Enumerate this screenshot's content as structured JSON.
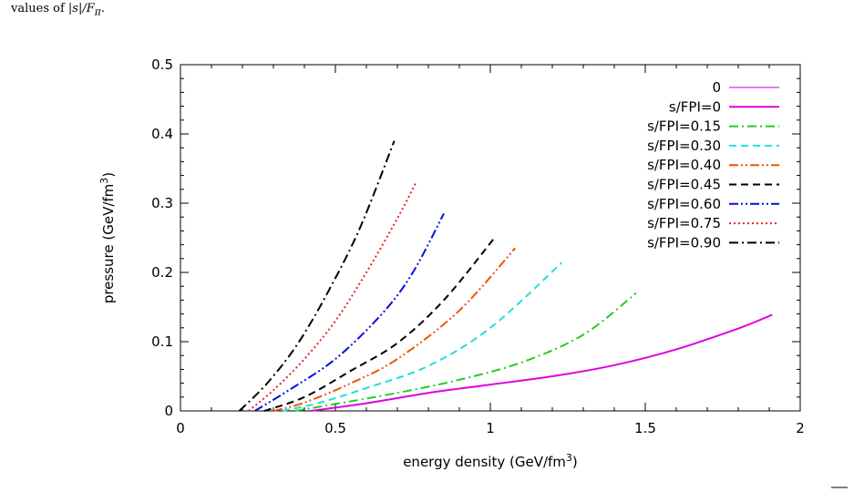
{
  "caption": {
    "prefix": "values of ",
    "math": "|s|/F",
    "sub": "π",
    "suffix": "."
  },
  "chart_data": {
    "type": "line",
    "xlabel": "energy density (GeV/fm",
    "xlabel_sup": "3",
    "xlabel_end": ")",
    "ylabel": "pressure (GeV/fm",
    "ylabel_sup": "3",
    "ylabel_end": ")",
    "xlim": [
      0,
      2
    ],
    "ylim": [
      0,
      0.5
    ],
    "x_ticks": [
      0,
      0.5,
      1,
      1.5,
      2
    ],
    "x_tick_labels": [
      "0",
      "0.5",
      "1",
      "1.5",
      "2"
    ],
    "y_ticks": [
      0,
      0.1,
      0.2,
      0.3,
      0.4,
      0.5
    ],
    "y_tick_labels": [
      "0",
      "0.1",
      "0.2",
      "0.3",
      "0.4",
      "0.5"
    ],
    "grid": false,
    "legend_position": "top-right",
    "series": [
      {
        "name": "0",
        "color": "#cc33dd",
        "dash": "solid",
        "width": 1.2,
        "points": []
      },
      {
        "name": "s/FPI=0",
        "color": "#e000e0",
        "dash": "solid",
        "width": 2,
        "points": [
          [
            0.42,
            0
          ],
          [
            0.6,
            0.011
          ],
          [
            0.8,
            0.026
          ],
          [
            1.0,
            0.038
          ],
          [
            1.2,
            0.05
          ],
          [
            1.4,
            0.066
          ],
          [
            1.6,
            0.089
          ],
          [
            1.8,
            0.119
          ],
          [
            1.91,
            0.139
          ]
        ]
      },
      {
        "name": "s/FPI=0.15",
        "color": "#22cc22",
        "dash": "dashdot",
        "width": 2,
        "points": [
          [
            0.37,
            0
          ],
          [
            0.5,
            0.01
          ],
          [
            0.7,
            0.026
          ],
          [
            0.9,
            0.045
          ],
          [
            1.1,
            0.07
          ],
          [
            1.3,
            0.11
          ],
          [
            1.47,
            0.17
          ]
        ]
      },
      {
        "name": "s/FPI=0.30",
        "color": "#22dddd",
        "dash": "dashed",
        "width": 2,
        "points": [
          [
            0.33,
            0
          ],
          [
            0.45,
            0.012
          ],
          [
            0.6,
            0.033
          ],
          [
            0.8,
            0.065
          ],
          [
            1.0,
            0.12
          ],
          [
            1.23,
            0.214
          ]
        ]
      },
      {
        "name": "s/FPI=0.40",
        "color": "#ee5500",
        "dash": "dashdotdot",
        "width": 2,
        "points": [
          [
            0.3,
            0
          ],
          [
            0.4,
            0.012
          ],
          [
            0.55,
            0.04
          ],
          [
            0.7,
            0.075
          ],
          [
            0.9,
            0.145
          ],
          [
            1.08,
            0.235
          ]
        ]
      },
      {
        "name": "s/FPI=0.45",
        "color": "#000000",
        "dash": "dashed",
        "width": 2,
        "points": [
          [
            0.27,
            0
          ],
          [
            0.4,
            0.02
          ],
          [
            0.55,
            0.058
          ],
          [
            0.7,
            0.098
          ],
          [
            0.85,
            0.16
          ],
          [
            1.01,
            0.248
          ]
        ]
      },
      {
        "name": "s/FPI=0.60",
        "color": "#0011dd",
        "dash": "dashdotdot",
        "width": 2,
        "points": [
          [
            0.24,
            0
          ],
          [
            0.35,
            0.03
          ],
          [
            0.5,
            0.075
          ],
          [
            0.65,
            0.14
          ],
          [
            0.75,
            0.2
          ],
          [
            0.85,
            0.285
          ]
        ]
      },
      {
        "name": "s/FPI=0.75",
        "color": "#ee2222",
        "dash": "dotted",
        "width": 2,
        "points": [
          [
            0.22,
            0
          ],
          [
            0.3,
            0.03
          ],
          [
            0.4,
            0.075
          ],
          [
            0.5,
            0.13
          ],
          [
            0.6,
            0.2
          ],
          [
            0.7,
            0.278
          ],
          [
            0.76,
            0.33
          ]
        ]
      },
      {
        "name": "s/FPI=0.90",
        "color": "#000000",
        "dash": "dashdot",
        "width": 2,
        "points": [
          [
            0.19,
            0
          ],
          [
            0.28,
            0.04
          ],
          [
            0.38,
            0.098
          ],
          [
            0.48,
            0.175
          ],
          [
            0.58,
            0.265
          ],
          [
            0.69,
            0.39
          ]
        ]
      }
    ]
  }
}
